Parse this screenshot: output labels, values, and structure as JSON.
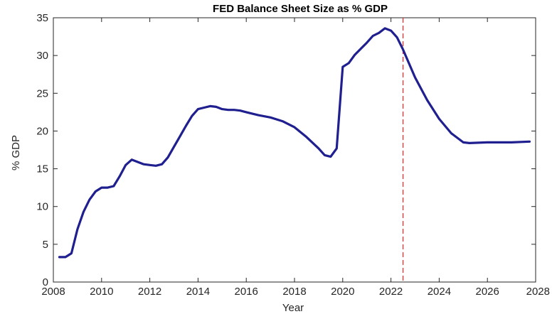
{
  "chart_data": {
    "type": "line",
    "title": "FED Balance Sheet Size as % GDP",
    "xlabel": "Year",
    "ylabel": "% GDP",
    "xlim": [
      2008,
      2028
    ],
    "ylim": [
      0,
      35
    ],
    "xticks": [
      2008,
      2010,
      2012,
      2014,
      2016,
      2018,
      2020,
      2022,
      2024,
      2026,
      2028
    ],
    "yticks": [
      0,
      5,
      10,
      15,
      20,
      25,
      30,
      35
    ],
    "grid": false,
    "series": [
      {
        "color": "#1f1f8f",
        "x": [
          2008.25,
          2008.5,
          2008.75,
          2009.0,
          2009.25,
          2009.5,
          2009.75,
          2010.0,
          2010.25,
          2010.5,
          2010.75,
          2011.0,
          2011.25,
          2011.5,
          2011.75,
          2012.0,
          2012.25,
          2012.5,
          2012.75,
          2013.0,
          2013.25,
          2013.5,
          2013.75,
          2014.0,
          2014.25,
          2014.5,
          2014.75,
          2015.0,
          2015.25,
          2015.5,
          2015.75,
          2016.0,
          2016.5,
          2017.0,
          2017.5,
          2018.0,
          2018.5,
          2019.0,
          2019.25,
          2019.5,
          2019.75,
          2020.0,
          2020.25,
          2020.5,
          2020.75,
          2021.0,
          2021.25,
          2021.5,
          2021.75,
          2022.0,
          2022.25,
          2022.5,
          2023.0,
          2023.5,
          2024.0,
          2024.5,
          2025.0,
          2025.25,
          2026.0,
          2027.0,
          2027.75
        ],
        "y": [
          3.3,
          3.3,
          3.8,
          7.0,
          9.3,
          10.9,
          12.0,
          12.5,
          12.5,
          12.7,
          14.0,
          15.5,
          16.2,
          15.9,
          15.6,
          15.5,
          15.4,
          15.6,
          16.5,
          17.9,
          19.3,
          20.7,
          22.0,
          22.9,
          23.1,
          23.3,
          23.2,
          22.9,
          22.8,
          22.8,
          22.7,
          22.5,
          22.1,
          21.8,
          21.3,
          20.5,
          19.2,
          17.7,
          16.8,
          16.6,
          17.7,
          28.5,
          29.0,
          30.1,
          30.9,
          31.7,
          32.6,
          33.0,
          33.6,
          33.3,
          32.4,
          30.8,
          27.1,
          24.1,
          21.6,
          19.7,
          18.5,
          18.4,
          18.5,
          18.5,
          18.6
        ]
      }
    ],
    "annotations": [
      {
        "type": "vertical-dashed-line",
        "x": 2022.5,
        "color": "#e03030"
      }
    ]
  }
}
